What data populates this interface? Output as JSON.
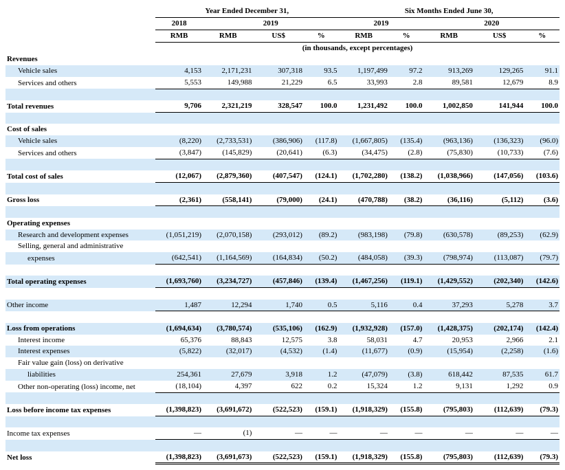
{
  "headers": {
    "year_ended": "Year Ended December 31,",
    "six_months": "Six Months Ended June 30,",
    "y2018": "2018",
    "y2019": "2019",
    "y2020": "2020",
    "rmb": "RMB",
    "usd": "US$",
    "pct": "%",
    "units": "(in thousands, except percentages)"
  },
  "rows": [
    {
      "label": "Revenues",
      "bold": true
    },
    {
      "label": "Vehicle sales",
      "indent": true,
      "alt": true,
      "v": [
        "4,153",
        "2,171,231",
        "307,318",
        "93.5",
        "1,197,499",
        "97.2",
        "913,269",
        "129,265",
        "91.1"
      ]
    },
    {
      "label": "Services and others",
      "indent": true,
      "alt": false,
      "rule": "u1",
      "v": [
        "5,553",
        "149,988",
        "21,229",
        "6.5",
        "33,993",
        "2.8",
        "89,581",
        "12,679",
        "8.9"
      ]
    },
    {
      "spacer": true,
      "alt": true
    },
    {
      "label": "Total revenues",
      "bold": true,
      "rule": "u1",
      "v": [
        "9,706",
        "2,321,219",
        "328,547",
        "100.0",
        "1,231,492",
        "100.0",
        "1,002,850",
        "141,944",
        "100.0"
      ]
    },
    {
      "spacer": true,
      "alt": true
    },
    {
      "label": "Cost of sales",
      "bold": true
    },
    {
      "label": "Vehicle sales",
      "indent": true,
      "alt": true,
      "v": [
        "(8,220)",
        "(2,733,531)",
        "(386,906)",
        "(117.8)",
        "(1,667,805)",
        "(135.4)",
        "(963,136)",
        "(136,323)",
        "(96.0)"
      ]
    },
    {
      "label": "Services and others",
      "indent": true,
      "rule": "u1",
      "v": [
        "(3,847)",
        "(145,829)",
        "(20,641)",
        "(6.3)",
        "(34,475)",
        "(2.8)",
        "(75,830)",
        "(10,733)",
        "(7.6)"
      ]
    },
    {
      "spacer": true,
      "alt": true
    },
    {
      "label": "Total cost of sales",
      "bold": true,
      "rule": "u1",
      "v": [
        "(12,067)",
        "(2,879,360)",
        "(407,547)",
        "(124.1)",
        "(1,702,280)",
        "(138.2)",
        "(1,038,966)",
        "(147,056)",
        "(103.6)"
      ]
    },
    {
      "spacer": true,
      "alt": true
    },
    {
      "label": "Gross loss",
      "bold": true,
      "rule": "u1",
      "v": [
        "(2,361)",
        "(558,141)",
        "(79,000)",
        "(24.1)",
        "(470,788)",
        "(38.2)",
        "(36,116)",
        "(5,112)",
        "(3.6)"
      ]
    },
    {
      "spacer": true,
      "alt": true
    },
    {
      "label": "Operating expenses",
      "bold": true
    },
    {
      "label": "Research and development expenses",
      "indent": true,
      "alt": true,
      "v": [
        "(1,051,219)",
        "(2,070,158)",
        "(293,012)",
        "(89.2)",
        "(983,198)",
        "(79.8)",
        "(630,578)",
        "(89,253)",
        "(62.9)"
      ]
    },
    {
      "label": "Selling, general and administrative",
      "indent": true,
      "wrap": true
    },
    {
      "label": "expenses",
      "indent": true,
      "indent2": true,
      "alt": true,
      "rule": "u1",
      "v": [
        "(642,541)",
        "(1,164,569)",
        "(164,834)",
        "(50.2)",
        "(484,058)",
        "(39.3)",
        "(798,974)",
        "(113,087)",
        "(79.7)"
      ]
    },
    {
      "spacer": true
    },
    {
      "label": "Total operating expenses",
      "bold": true,
      "alt": true,
      "rule": "u1",
      "v": [
        "(1,693,760)",
        "(3,234,727)",
        "(457,846)",
        "(139.4)",
        "(1,467,256)",
        "(119.1)",
        "(1,429,552)",
        "(202,340)",
        "(142.6)"
      ]
    },
    {
      "spacer": true
    },
    {
      "label": "Other income",
      "alt": true,
      "rule": "u1",
      "v": [
        "1,487",
        "12,294",
        "1,740",
        "0.5",
        "5,116",
        "0.4",
        "37,293",
        "5,278",
        "3.7"
      ]
    },
    {
      "spacer": true
    },
    {
      "label": "Loss from operations",
      "bold": true,
      "alt": true,
      "v": [
        "(1,694,634)",
        "(3,780,574)",
        "(535,106)",
        "(162.9)",
        "(1,932,928)",
        "(157.0)",
        "(1,428,375)",
        "(202,174)",
        "(142.4)"
      ]
    },
    {
      "label": "Interest income",
      "indent": true,
      "v": [
        "65,376",
        "88,843",
        "12,575",
        "3.8",
        "58,031",
        "4.7",
        "20,953",
        "2,966",
        "2.1"
      ]
    },
    {
      "label": "Interest expenses",
      "indent": true,
      "alt": true,
      "v": [
        "(5,822)",
        "(32,017)",
        "(4,532)",
        "(1.4)",
        "(11,677)",
        "(0.9)",
        "(15,954)",
        "(2,258)",
        "(1.6)"
      ]
    },
    {
      "label": "Fair value gain (loss) on derivative",
      "indent": true,
      "wrap": true
    },
    {
      "label": "liabilities",
      "indent": true,
      "indent2": true,
      "alt": true,
      "v": [
        "254,361",
        "27,679",
        "3,918",
        "1.2",
        "(47,079)",
        "(3.8)",
        "618,442",
        "87,535",
        "61.7"
      ]
    },
    {
      "label": "Other non-operating (loss) income, net",
      "indent": true,
      "rule": "u1",
      "v": [
        "(18,104)",
        "4,397",
        "622",
        "0.2",
        "15,324",
        "1.2",
        "9,131",
        "1,292",
        "0.9"
      ]
    },
    {
      "spacer": true,
      "alt": true
    },
    {
      "label": "Loss before income tax expenses",
      "bold": true,
      "rule": "u1",
      "v": [
        "(1,398,823)",
        "(3,691,672)",
        "(522,523)",
        "(159.1)",
        "(1,918,329)",
        "(155.8)",
        "(795,803)",
        "(112,639)",
        "(79.3)"
      ]
    },
    {
      "spacer": true,
      "alt": true
    },
    {
      "label": "Income tax expenses",
      "rule": "u1",
      "v": [
        "—",
        "(1)",
        "—",
        "—",
        "—",
        "—",
        "—",
        "—",
        "—"
      ]
    },
    {
      "spacer": true,
      "alt": true
    },
    {
      "label": "Net loss",
      "bold": true,
      "rule": "u2",
      "v": [
        "(1,398,823)",
        "(3,691,673)",
        "(522,523)",
        "(159.1)",
        "(1,918,329)",
        "(155.8)",
        "(795,803)",
        "(112,639)",
        "(79.3)"
      ]
    }
  ]
}
